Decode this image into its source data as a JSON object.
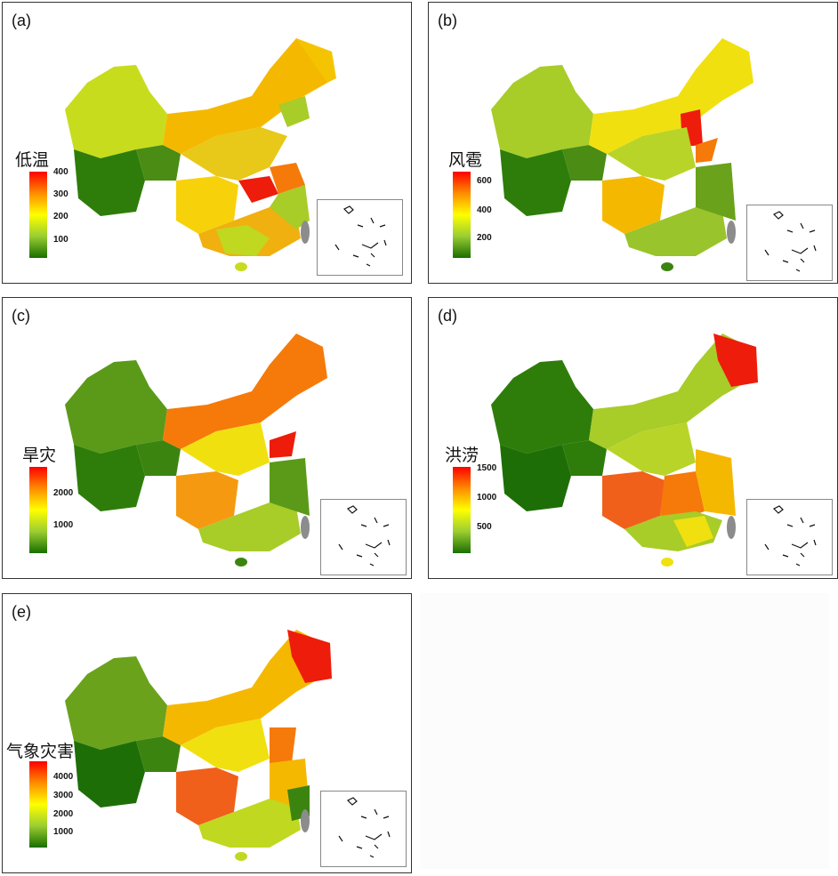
{
  "panels": [
    {
      "label": "(a)",
      "legend_title": "低温",
      "ticks": [
        "400",
        "300",
        "200",
        "100"
      ]
    },
    {
      "label": "(b)",
      "legend_title": "风雹",
      "ticks": [
        "600",
        "400",
        "200"
      ]
    },
    {
      "label": "(c)",
      "legend_title": "旱灾",
      "ticks": [
        "2000",
        "1000"
      ]
    },
    {
      "label": "(d)",
      "legend_title": "洪涝",
      "ticks": [
        "1500",
        "1000",
        "500"
      ]
    },
    {
      "label": "(e)",
      "legend_title": "气象灾害",
      "ticks": [
        "4000",
        "3000",
        "2000",
        "1000"
      ]
    }
  ],
  "colors": {
    "high": "#ff0000",
    "mid_high": "#ff8c00",
    "mid": "#ffff00",
    "mid_low": "#9acd32",
    "low": "#1a6e00",
    "taiwan": "#8c8c8c"
  }
}
